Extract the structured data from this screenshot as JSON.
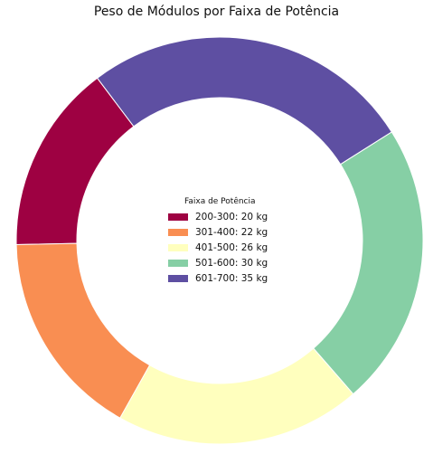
{
  "chart_data": {
    "type": "pie",
    "variant": "donut",
    "title": "Peso de Módulos por Faixa de Potência",
    "categories": [
      "200-300",
      "301-400",
      "401-500",
      "501-600",
      "601-700"
    ],
    "values": [
      20,
      22,
      26,
      30,
      35
    ],
    "unit": "kg",
    "colors": [
      "#9e0142",
      "#f98e52",
      "#ffffbe",
      "#86cfa5",
      "#5e4fa2"
    ],
    "legend": {
      "title": "Faixa de Potência",
      "placement": "center",
      "entries": [
        "200-300: 20 kg",
        "301-400: 22 kg",
        "401-500: 26 kg",
        "501-600: 30 kg",
        "601-700: 35 kg"
      ]
    }
  }
}
